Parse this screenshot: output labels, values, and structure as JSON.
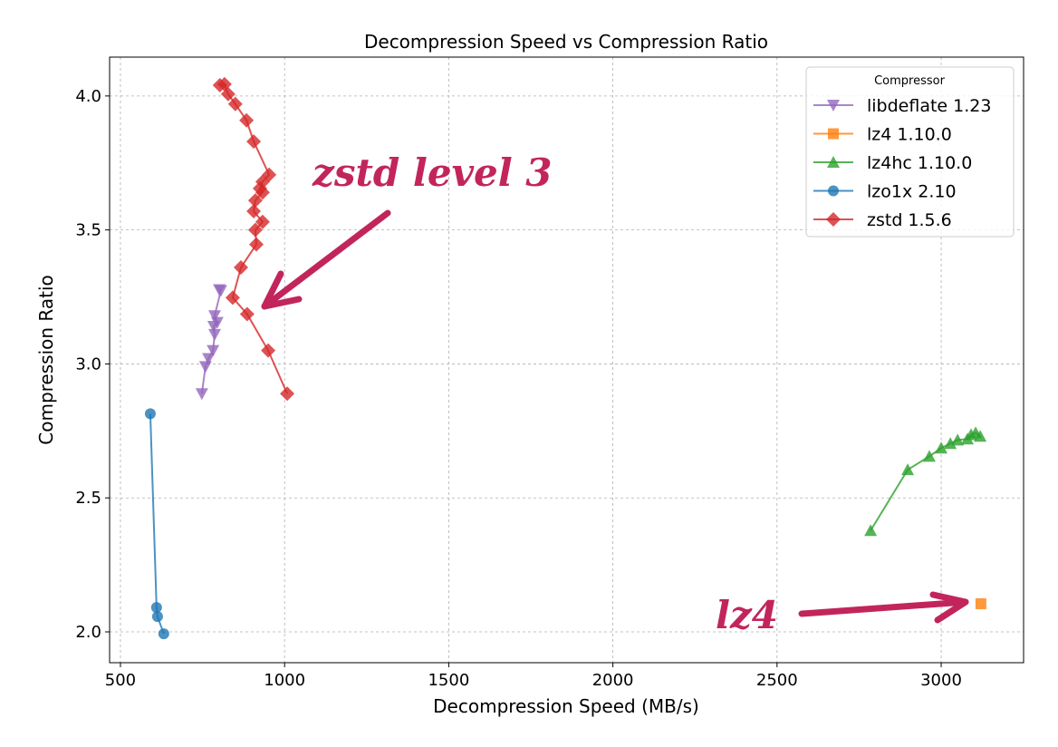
{
  "chart_data": {
    "type": "scatter",
    "title": "Decompression Speed vs Compression Ratio",
    "xlabel": "Decompression Speed (MB/s)",
    "ylabel": "Compression Ratio",
    "xlim": [
      467,
      3251
    ],
    "ylim": [
      1.885,
      4.145
    ],
    "xticks": [
      500,
      1000,
      1500,
      2000,
      2500,
      3000
    ],
    "yticks": [
      2.0,
      2.5,
      3.0,
      3.5,
      4.0
    ],
    "ytick_labels": [
      "2.0",
      "2.5",
      "3.0",
      "3.5",
      "4.0"
    ],
    "grid": true,
    "legend": {
      "title": "Compressor",
      "placement": "top-right"
    },
    "series": [
      {
        "name": "libdeflate 1.23",
        "color": "#9467bd",
        "marker": "triangle-down",
        "x": [
          801,
          806,
          787,
          795,
          784,
          787,
          782,
          768,
          759,
          748
        ],
        "y": [
          3.277,
          3.274,
          3.18,
          3.155,
          3.14,
          3.11,
          3.05,
          3.02,
          2.99,
          2.889
        ]
      },
      {
        "name": "lz4 1.10.0",
        "color": "#ff7f0e",
        "marker": "square",
        "x": [
          3121
        ],
        "y": [
          2.105
        ]
      },
      {
        "name": "lz4hc 1.10.0",
        "color": "#2ca02c",
        "marker": "triangle-up",
        "x": [
          2785,
          2898,
          2964,
          3000,
          3028,
          3050,
          3080,
          3091,
          3105,
          3119
        ],
        "y": [
          2.378,
          2.605,
          2.655,
          2.686,
          2.703,
          2.716,
          2.72,
          2.736,
          2.743,
          2.73
        ]
      },
      {
        "name": "lzo1x 2.10",
        "color": "#1f77b4",
        "marker": "circle",
        "x": [
          591,
          610,
          613,
          632
        ],
        "y": [
          2.814,
          2.091,
          2.057,
          1.993
        ]
      },
      {
        "name": "zstd 1.5.6",
        "color": "#d62728",
        "marker": "diamond",
        "x": [
          803,
          817,
          828,
          850,
          884,
          906,
          953,
          933,
          925,
          933,
          911,
          906,
          933,
          911,
          914,
          867,
          842,
          886,
          950,
          1008
        ],
        "y": [
          4.04,
          4.044,
          4.007,
          3.97,
          3.909,
          3.83,
          3.706,
          3.68,
          3.655,
          3.64,
          3.61,
          3.57,
          3.53,
          3.5,
          3.446,
          3.36,
          3.247,
          3.186,
          3.05,
          2.889
        ]
      }
    ],
    "annotations": [
      {
        "text": "zstd level 3",
        "color": "#c2255c"
      },
      {
        "text": "lz4",
        "color": "#c2255c"
      }
    ]
  }
}
